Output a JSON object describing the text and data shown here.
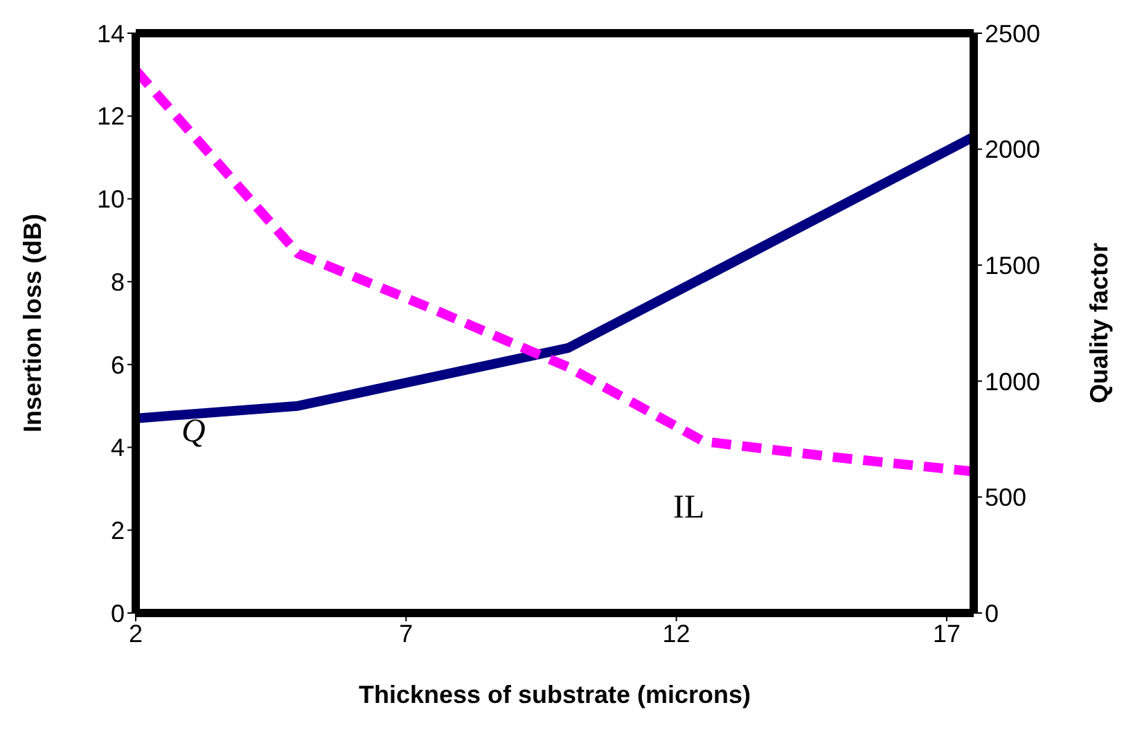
{
  "chart_data": {
    "type": "line",
    "xlabel": "Thickness of substrate (microns)",
    "ylabel": "Insertion loss (dB)",
    "y2label": "Quality factor",
    "xlim": [
      2,
      17.5
    ],
    "xticks": [
      2,
      7,
      12,
      17
    ],
    "ylim": [
      0,
      14
    ],
    "yticks": [
      0,
      2,
      4,
      6,
      8,
      10,
      12,
      14
    ],
    "y2lim": [
      0,
      2500
    ],
    "y2ticks": [
      0,
      500,
      1000,
      1500,
      2000,
      2500
    ],
    "marker": "none",
    "series": [
      {
        "color": "#000080",
        "x": [
          2,
          5,
          10,
          17.5
        ],
        "values": [
          4.7,
          5,
          6.4,
          11.5
        ],
        "line_style": "solid"
      },
      {
        "color": "#ff00ff",
        "x": [
          2,
          5,
          7.5,
          10,
          12.5,
          15,
          17.5
        ],
        "values": [
          2340,
          1550,
          1310,
          1060,
          740,
          670,
          610
        ],
        "axis": "y2",
        "line_style": "dashed"
      }
    ],
    "annotations": [
      "Q",
      "IL"
    ]
  }
}
